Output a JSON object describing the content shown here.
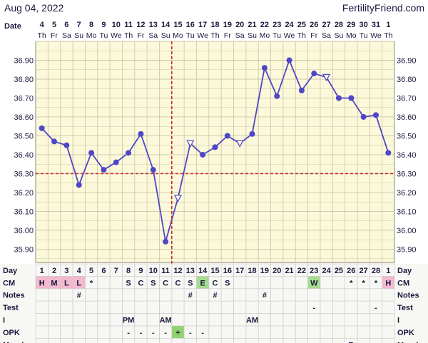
{
  "header": {
    "date": "Aug 04, 2022",
    "brand": "FertilityFriend.com"
  },
  "colors": {
    "chart_bg": "#fbf9d9",
    "grid": "#c8c6a8",
    "line": "#4f46c7",
    "coverline": "#cc2b2b",
    "ovulation": "#cc2b2b",
    "cm_pink": "#f2b9cf",
    "cm_green": "#a6dc8f",
    "opk_green": "#8fd46f",
    "row_bg": "#f7f7f4",
    "cell_border": "#cfcfcf",
    "text": "#1a1a40"
  },
  "chart_data": {
    "type": "line",
    "title": "",
    "xlabel": "Date",
    "ylabel": "",
    "x": [
      "4",
      "5",
      "6",
      "7",
      "8",
      "9",
      "10",
      "11",
      "12",
      "13",
      "14",
      "15",
      "16",
      "17",
      "18",
      "19",
      "20",
      "21",
      "22",
      "23",
      "24",
      "25",
      "26",
      "27",
      "28",
      "29",
      "30",
      "31",
      "1"
    ],
    "weekdays": [
      "Th",
      "Fr",
      "Sa",
      "Su",
      "Mo",
      "Tu",
      "We",
      "Th",
      "Fr",
      "Sa",
      "Su",
      "Mo",
      "Tu",
      "We",
      "Th",
      "Fr",
      "Sa",
      "Su",
      "Mo",
      "Tu",
      "We",
      "Th",
      "Fr",
      "Sa",
      "Su",
      "Mo",
      "Tu",
      "We",
      "Th"
    ],
    "cycle_days": [
      "1",
      "2",
      "3",
      "4",
      "5",
      "6",
      "7",
      "8",
      "9",
      "10",
      "11",
      "12",
      "13",
      "14",
      "15",
      "16",
      "17",
      "18",
      "19",
      "20",
      "21",
      "22",
      "23",
      "24",
      "25",
      "26",
      "27",
      "28",
      "1"
    ],
    "series": [
      {
        "values": [
          36.54,
          36.47,
          36.45,
          36.24,
          36.41,
          36.32,
          36.36,
          36.41,
          36.51,
          36.32,
          35.94,
          36.17,
          36.46,
          36.4,
          36.44,
          36.5,
          36.46,
          36.51,
          36.86,
          36.71,
          36.9,
          36.74,
          36.83,
          36.81,
          36.7,
          36.7,
          36.6,
          36.61,
          36.41
        ],
        "markers": [
          "dot",
          "dot",
          "dot",
          "dot",
          "dot",
          "dot",
          "dot",
          "dot",
          "dot",
          "dot",
          "dot",
          "tri",
          "tri",
          "dot",
          "dot",
          "dot",
          "tri",
          "dot",
          "dot",
          "dot",
          "dot",
          "dot",
          "dot",
          "tri",
          "dot",
          "dot",
          "dot",
          "dot",
          "dot"
        ]
      }
    ],
    "y_ticks": [
      "35.90",
      "36.00",
      "36.10",
      "36.20",
      "36.30",
      "36.40",
      "36.50",
      "36.60",
      "36.70",
      "36.80",
      "36.90"
    ],
    "ylim": [
      35.83,
      37.0
    ],
    "coverline": 36.3,
    "ovulation_day_index": 11,
    "grid": true
  },
  "rows": [
    {
      "label": "Day"
    },
    {
      "label": "CM",
      "cells": [
        "H",
        "M",
        "L",
        "L",
        "*",
        "",
        "",
        "S",
        "C",
        "S",
        "C",
        "C",
        "S",
        "E",
        "C",
        "S",
        "",
        "",
        "",
        "",
        "",
        "",
        "W",
        "",
        "",
        "*",
        "*",
        "*",
        "H"
      ],
      "colors": [
        "pink",
        "pink",
        "pink",
        "pink",
        "",
        "",
        "",
        "",
        "",
        "",
        "",
        "",
        "",
        "green",
        "",
        "",
        "",
        "",
        "",
        "",
        "",
        "",
        "green",
        "",
        "",
        "",
        "",
        "",
        "pink"
      ]
    },
    {
      "label": "Notes",
      "cells": [
        "",
        "",
        "",
        "#",
        "",
        "",
        "",
        "",
        "",
        "",
        "",
        "",
        "#",
        "",
        "#",
        "",
        "",
        "",
        "#",
        "",
        "",
        "",
        "",
        "",
        "",
        "",
        "",
        "",
        ""
      ]
    },
    {
      "label": "Test",
      "cells": [
        "",
        "",
        "",
        "",
        "",
        "",
        "",
        "",
        "",
        "",
        "",
        "",
        "",
        "",
        "",
        "",
        "",
        "",
        "",
        "",
        "",
        "",
        "-",
        "",
        "",
        "",
        "",
        "-",
        ""
      ]
    },
    {
      "label": "I",
      "cells": [
        "",
        "",
        "",
        "",
        "",
        "",
        "",
        "PM",
        "",
        "",
        "AM",
        "",
        "",
        "",
        "",
        "",
        "",
        "AM",
        "",
        "",
        "",
        "",
        "",
        "",
        "",
        "",
        "",
        "",
        ""
      ]
    },
    {
      "label": "OPK",
      "cells": [
        "",
        "",
        "",
        "",
        "",
        "",
        "",
        "-",
        "-",
        "-",
        "-",
        "+",
        "-",
        "-",
        "",
        "",
        "",
        "",
        "",
        "",
        "",
        "",
        "",
        "",
        "",
        "",
        "",
        "",
        ""
      ],
      "colors": [
        "",
        "",
        "",
        "",
        "",
        "",
        "",
        "",
        "",
        "",
        "",
        "green",
        "",
        "",
        "",
        "",
        "",
        "",
        "",
        "",
        "",
        "",
        "",
        "",
        "",
        "",
        "",
        "",
        ""
      ]
    },
    {
      "label": "Mood",
      "cells": [
        "",
        "",
        "",
        "",
        "",
        "",
        "",
        "",
        "",
        "",
        "",
        "",
        "",
        "",
        "",
        "",
        "",
        "",
        "",
        "",
        "",
        "",
        "",
        "",
        "",
        "R",
        "",
        "",
        ""
      ]
    }
  ]
}
